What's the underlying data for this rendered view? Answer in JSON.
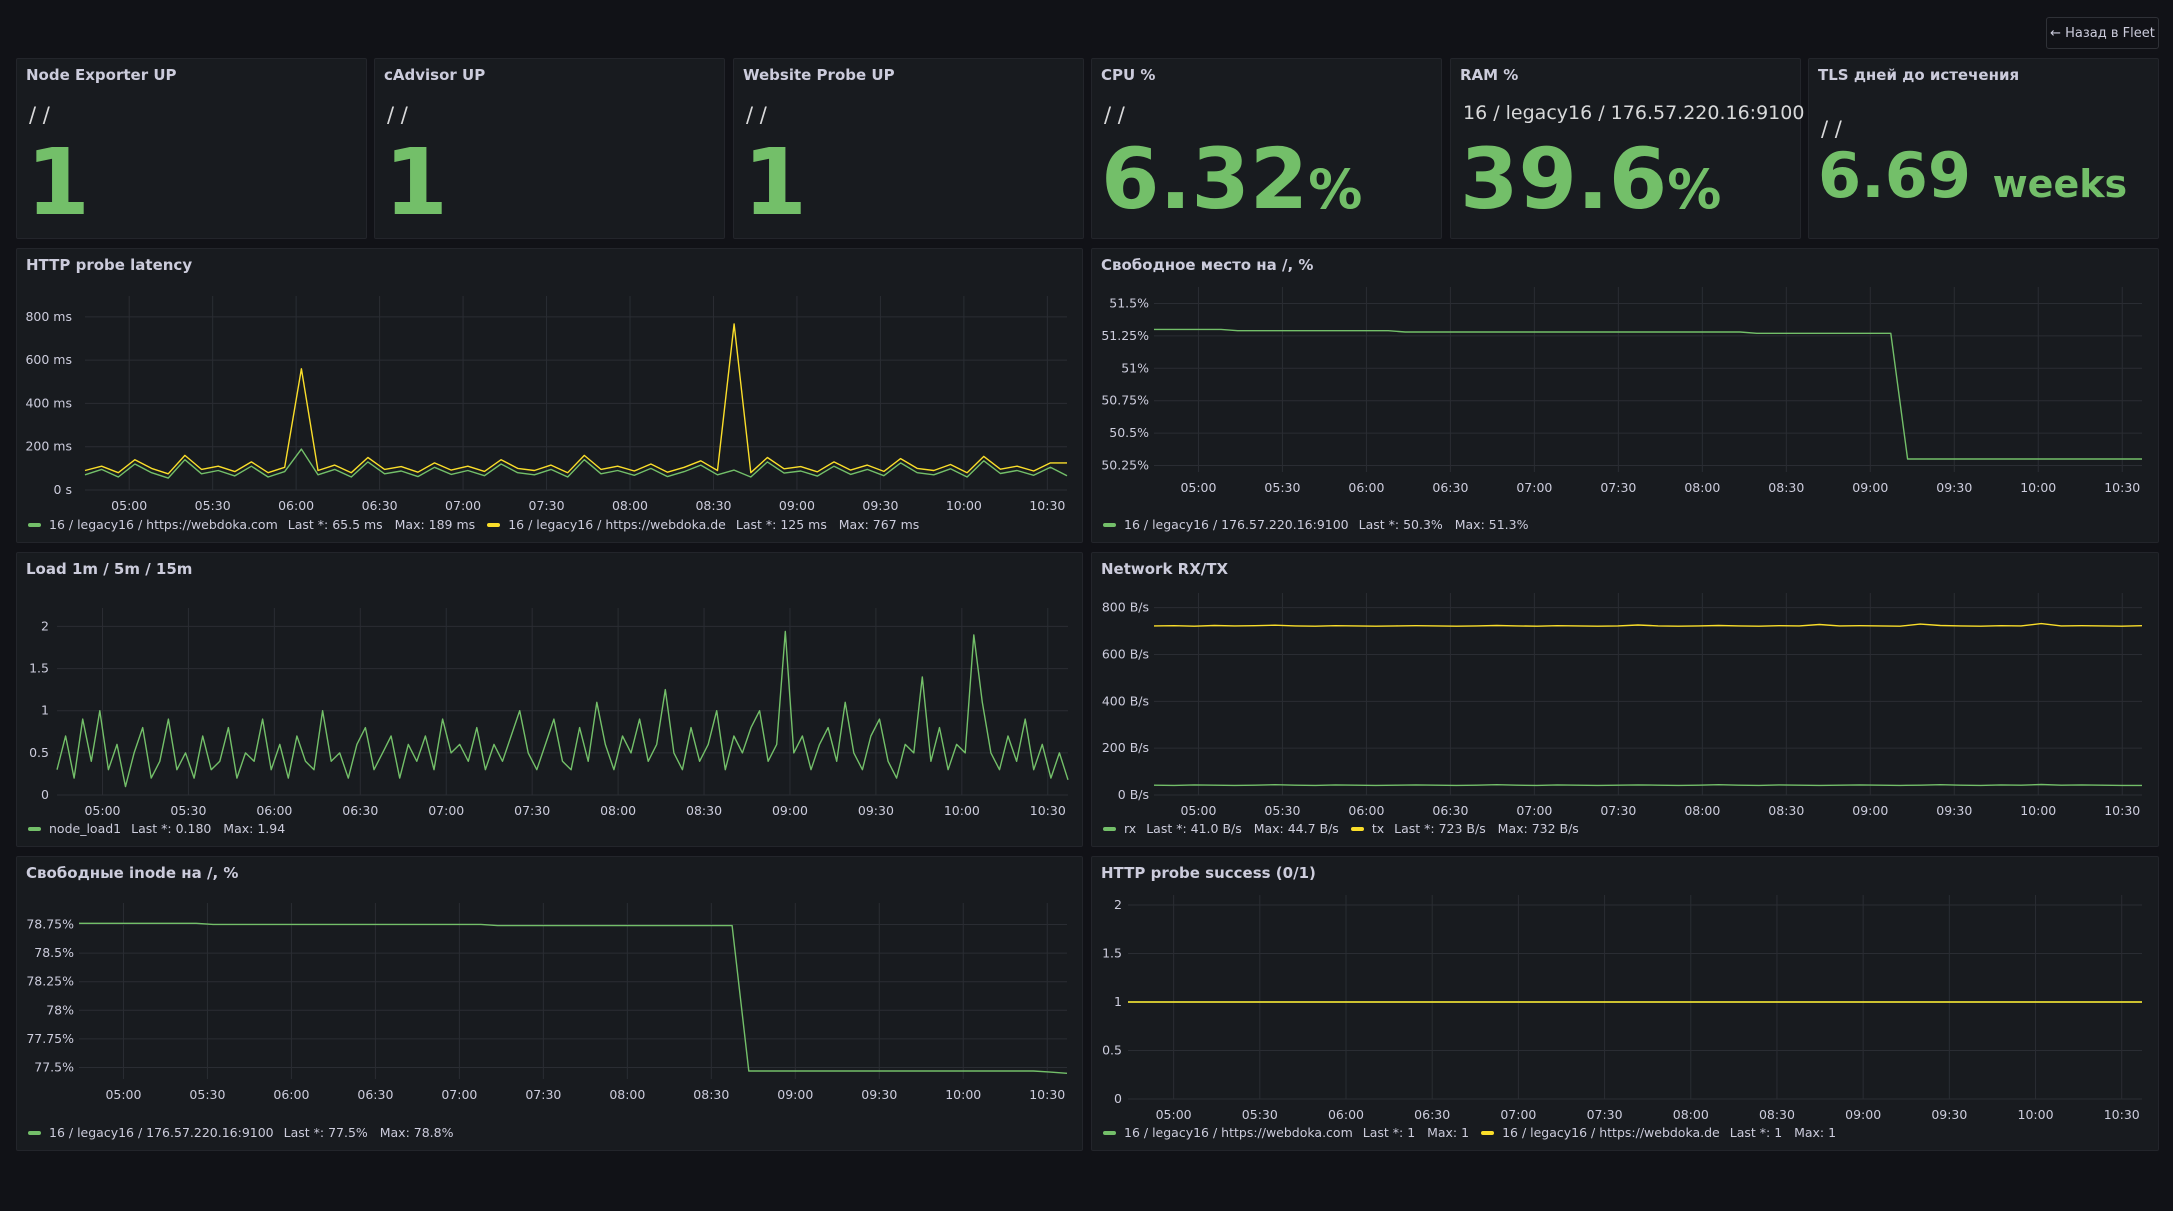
{
  "header": {
    "back_button": "← Назад в Fleet"
  },
  "colors": {
    "green": "#73bf69",
    "yellow": "#fade2a",
    "grid": "#2a2d33",
    "text": "#ccccdc"
  },
  "stats": {
    "node_exporter": {
      "title": "Node Exporter UP",
      "subtitle": "/ /",
      "value": "1",
      "unit": ""
    },
    "cadvisor": {
      "title": "cAdvisor UP",
      "subtitle": "/ /",
      "value": "1",
      "unit": ""
    },
    "website_probe": {
      "title": "Website Probe UP",
      "subtitle": "/ /",
      "value": "1",
      "unit": ""
    },
    "cpu": {
      "title": "CPU %",
      "subtitle": "/ /",
      "value": "6.32",
      "unit": "%"
    },
    "ram": {
      "title": "RAM %",
      "subtitle": "16 / legacy16 / 176.57.220.16:9100",
      "value": "39.6",
      "unit": "%"
    },
    "tls": {
      "title": "TLS дней до истечения",
      "subtitle": "/ /",
      "value": "6.69",
      "unit": "weeks"
    }
  },
  "chart_data": [
    {
      "id": "latency",
      "type": "line",
      "title": "HTTP probe latency",
      "x_ticks": [
        "05:00",
        "05:30",
        "06:00",
        "06:30",
        "07:00",
        "07:30",
        "08:00",
        "08:30",
        "09:00",
        "09:30",
        "10:00",
        "10:30"
      ],
      "y_ticks": [
        "800 ms",
        "600 ms",
        "400 ms",
        "200 ms",
        "0 s"
      ],
      "ylim": [
        0,
        850
      ],
      "series": [
        {
          "name": "16 / legacy16 / https://webdoka.com",
          "color": "green",
          "last": "65.5 ms",
          "max": "189 ms",
          "values": [
            70,
            95,
            60,
            120,
            80,
            55,
            140,
            75,
            90,
            65,
            110,
            60,
            85,
            189,
            70,
            95,
            60,
            130,
            75,
            88,
            62,
            105,
            72,
            90,
            66,
            120,
            80,
            70,
            95,
            60,
            140,
            75,
            90,
            68,
            100,
            62,
            85,
            115,
            70,
            92,
            60,
            130,
            78,
            88,
            64,
            110,
            72,
            95,
            66,
            125,
            80,
            70,
            98,
            60,
            135,
            76,
            90,
            68,
            105,
            65.5
          ]
        },
        {
          "name": "16 / legacy16 / https://webdoka.de",
          "color": "yellow",
          "last": "125 ms",
          "max": "767 ms",
          "values": [
            90,
            110,
            80,
            140,
            100,
            75,
            160,
            95,
            110,
            85,
            130,
            80,
            105,
            560,
            90,
            115,
            80,
            150,
            95,
            108,
            82,
            125,
            92,
            110,
            86,
            140,
            100,
            90,
            115,
            80,
            160,
            95,
            110,
            88,
            120,
            82,
            105,
            135,
            90,
            767,
            80,
            150,
            98,
            108,
            84,
            130,
            92,
            115,
            86,
            145,
            100,
            90,
            118,
            80,
            155,
            96,
            110,
            88,
            125,
            125
          ]
        }
      ]
    },
    {
      "id": "disk",
      "type": "line",
      "title": "Свободное место на /, %",
      "x_ticks": [
        "05:00",
        "05:30",
        "06:00",
        "06:30",
        "07:00",
        "07:30",
        "08:00",
        "08:30",
        "09:00",
        "09:30",
        "10:00",
        "10:30"
      ],
      "y_ticks": [
        "51.5%",
        "51.25%",
        "51%",
        "50.75%",
        "50.5%",
        "50.25%"
      ],
      "ylim": [
        50.2,
        51.55
      ],
      "series": [
        {
          "name": "16 / legacy16 / 176.57.220.16:9100",
          "color": "green",
          "last": "50.3%",
          "max": "51.3%",
          "values": [
            51.3,
            51.3,
            51.3,
            51.3,
            51.3,
            51.29,
            51.29,
            51.29,
            51.29,
            51.29,
            51.29,
            51.29,
            51.29,
            51.29,
            51.29,
            51.28,
            51.28,
            51.28,
            51.28,
            51.28,
            51.28,
            51.28,
            51.28,
            51.28,
            51.28,
            51.28,
            51.28,
            51.28,
            51.28,
            51.28,
            51.28,
            51.28,
            51.28,
            51.28,
            51.28,
            51.28,
            51.27,
            51.27,
            51.27,
            51.27,
            51.27,
            51.27,
            51.27,
            51.27,
            51.27,
            50.3,
            50.3,
            50.3,
            50.3,
            50.3,
            50.3,
            50.3,
            50.3,
            50.3,
            50.3,
            50.3,
            50.3,
            50.3,
            50.3,
            50.3
          ]
        }
      ]
    },
    {
      "id": "load",
      "type": "line",
      "title": "Load 1m / 5m / 15m",
      "x_ticks": [
        "05:00",
        "05:30",
        "06:00",
        "06:30",
        "07:00",
        "07:30",
        "08:00",
        "08:30",
        "09:00",
        "09:30",
        "10:00",
        "10:30"
      ],
      "y_ticks": [
        "2",
        "1.5",
        "1",
        "0.5",
        "0"
      ],
      "ylim": [
        0,
        2.1
      ],
      "series": [
        {
          "name": "node_load1",
          "color": "green",
          "last": "0.180",
          "max": "1.94",
          "values": [
            0.3,
            0.7,
            0.2,
            0.9,
            0.4,
            1.0,
            0.3,
            0.6,
            0.1,
            0.5,
            0.8,
            0.2,
            0.4,
            0.9,
            0.3,
            0.5,
            0.2,
            0.7,
            0.3,
            0.4,
            0.8,
            0.2,
            0.5,
            0.4,
            0.9,
            0.3,
            0.6,
            0.2,
            0.7,
            0.4,
            0.3,
            1.0,
            0.4,
            0.5,
            0.2,
            0.6,
            0.8,
            0.3,
            0.5,
            0.7,
            0.2,
            0.6,
            0.4,
            0.7,
            0.3,
            0.9,
            0.5,
            0.6,
            0.4,
            0.8,
            0.3,
            0.6,
            0.4,
            0.7,
            1.0,
            0.5,
            0.3,
            0.6,
            0.9,
            0.4,
            0.3,
            0.8,
            0.4,
            1.1,
            0.6,
            0.3,
            0.7,
            0.5,
            0.9,
            0.4,
            0.6,
            1.25,
            0.5,
            0.3,
            0.8,
            0.4,
            0.6,
            1.0,
            0.3,
            0.7,
            0.5,
            0.8,
            1.0,
            0.4,
            0.6,
            1.94,
            0.5,
            0.7,
            0.3,
            0.6,
            0.8,
            0.4,
            1.1,
            0.5,
            0.3,
            0.7,
            0.9,
            0.4,
            0.2,
            0.6,
            0.5,
            1.4,
            0.4,
            0.8,
            0.3,
            0.6,
            0.5,
            1.9,
            1.1,
            0.5,
            0.3,
            0.7,
            0.4,
            0.9,
            0.3,
            0.6,
            0.2,
            0.5,
            0.18
          ]
        }
      ]
    },
    {
      "id": "network",
      "type": "line",
      "title": "Network RX/TX",
      "x_ticks": [
        "05:00",
        "05:30",
        "06:00",
        "06:30",
        "07:00",
        "07:30",
        "08:00",
        "08:30",
        "09:00",
        "09:30",
        "10:00",
        "10:30"
      ],
      "y_ticks": [
        "800 B/s",
        "600 B/s",
        "400 B/s",
        "200 B/s",
        "0 B/s"
      ],
      "ylim": [
        0,
        820
      ],
      "series": [
        {
          "name": "rx",
          "color": "green",
          "last": "41.0 B/s",
          "max": "44.7 B/s",
          "values": [
            42,
            41,
            43,
            42,
            41,
            42,
            44,
            42,
            41,
            43,
            42,
            41,
            42,
            43,
            42,
            41,
            42,
            44,
            42,
            41,
            43,
            42,
            41,
            42,
            43,
            42,
            41,
            42,
            44,
            42,
            41,
            43,
            42,
            41,
            42,
            43,
            42,
            41,
            42,
            44,
            42,
            41,
            43,
            42,
            44.7,
            42,
            43,
            42,
            41,
            41
          ]
        },
        {
          "name": "tx",
          "color": "yellow",
          "last": "723 B/s",
          "max": "732 B/s",
          "values": [
            722,
            723,
            721,
            724,
            722,
            723,
            725,
            722,
            721,
            723,
            722,
            721,
            722,
            723,
            722,
            721,
            722,
            724,
            722,
            721,
            723,
            722,
            721,
            722,
            726,
            722,
            721,
            722,
            724,
            722,
            721,
            723,
            722,
            728,
            722,
            723,
            722,
            721,
            730,
            724,
            722,
            721,
            723,
            722,
            732,
            722,
            723,
            722,
            721,
            723
          ]
        }
      ]
    },
    {
      "id": "inode",
      "type": "line",
      "title": "Свободные inode на /, %",
      "x_ticks": [
        "05:00",
        "05:30",
        "06:00",
        "06:30",
        "07:00",
        "07:30",
        "08:00",
        "08:30",
        "09:00",
        "09:30",
        "10:00",
        "10:30"
      ],
      "y_ticks": [
        "78.75%",
        "78.5%",
        "78.25%",
        "78%",
        "77.75%",
        "77.5%"
      ],
      "ylim": [
        77.4,
        78.85
      ],
      "series": [
        {
          "name": "16 / legacy16 / 176.57.220.16:9100",
          "color": "green",
          "last": "77.5%",
          "max": "78.8%",
          "values": [
            78.76,
            78.76,
            78.76,
            78.76,
            78.76,
            78.76,
            78.76,
            78.76,
            78.75,
            78.75,
            78.75,
            78.75,
            78.75,
            78.75,
            78.75,
            78.75,
            78.75,
            78.75,
            78.75,
            78.75,
            78.75,
            78.75,
            78.75,
            78.75,
            78.75,
            78.74,
            78.74,
            78.74,
            78.74,
            78.74,
            78.74,
            78.74,
            78.74,
            78.74,
            78.74,
            78.74,
            78.74,
            78.74,
            78.74,
            78.74,
            77.47,
            77.47,
            77.47,
            77.47,
            77.47,
            77.47,
            77.47,
            77.47,
            77.47,
            77.47,
            77.47,
            77.47,
            77.47,
            77.47,
            77.47,
            77.47,
            77.47,
            77.47,
            77.46,
            77.45
          ]
        }
      ]
    },
    {
      "id": "success",
      "type": "line",
      "title": "HTTP probe success (0/1)",
      "x_ticks": [
        "05:00",
        "05:30",
        "06:00",
        "06:30",
        "07:00",
        "07:30",
        "08:00",
        "08:30",
        "09:00",
        "09:30",
        "10:00",
        "10:30"
      ],
      "y_ticks": [
        "2",
        "1.5",
        "1",
        "0.5",
        "0"
      ],
      "ylim": [
        0,
        2
      ],
      "series": [
        {
          "name": "16 / legacy16 / https://webdoka.com",
          "color": "green",
          "last": "1",
          "max": "1",
          "values": [
            1,
            1,
            1,
            1,
            1,
            1,
            1,
            1,
            1,
            1,
            1,
            1,
            1,
            1,
            1,
            1,
            1,
            1,
            1,
            1
          ]
        },
        {
          "name": "16 / legacy16 / https://webdoka.de",
          "color": "yellow",
          "last": "1",
          "max": "1",
          "values": [
            1,
            1,
            1,
            1,
            1,
            1,
            1,
            1,
            1,
            1,
            1,
            1,
            1,
            1,
            1,
            1,
            1,
            1,
            1,
            1
          ]
        }
      ]
    }
  ],
  "legend_labels": {
    "last": "Last *:",
    "max": "Max:"
  }
}
